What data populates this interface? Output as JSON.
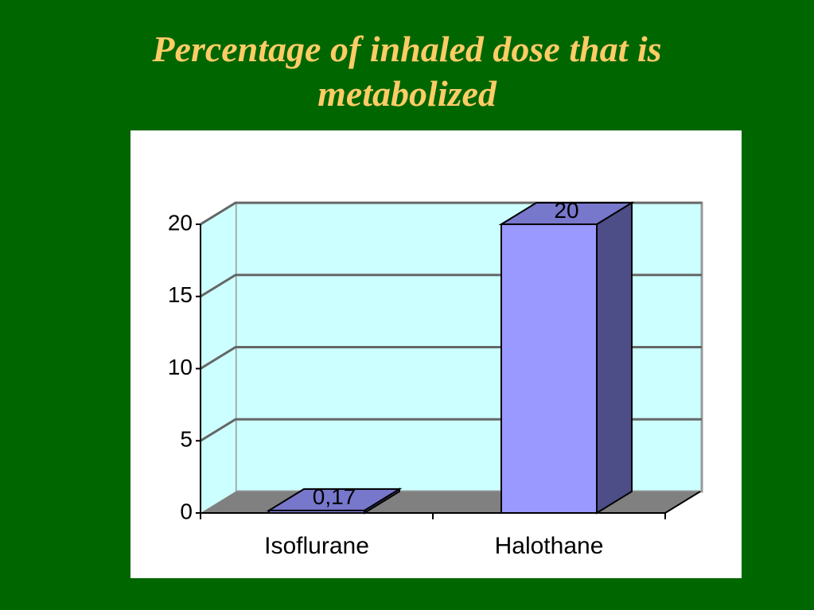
{
  "chart_data": {
    "type": "bar3d",
    "title": "Percentage of inhaled dose that is metabolized",
    "categories": [
      "Isoflurane",
      "Halothane"
    ],
    "values": [
      0.17,
      20
    ],
    "value_labels": [
      "0,17",
      "20"
    ],
    "color": "#9999ff",
    "ylim": [
      0,
      20
    ],
    "yticks": [
      0,
      5,
      10,
      15,
      20
    ],
    "grid": true
  }
}
